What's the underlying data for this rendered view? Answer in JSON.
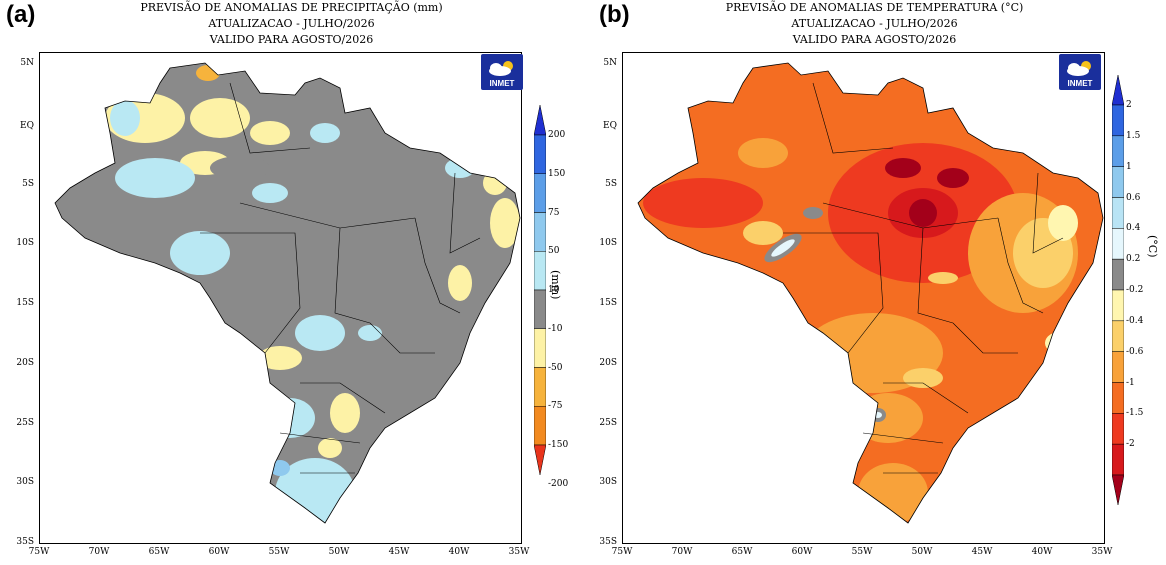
{
  "panel_a": {
    "label": "(a)",
    "title_lines": [
      "PREVISÃO DE ANOMALIAS DE PRECIPITAÇÃO (mm)",
      "ATUALIZACAO - JULHO/2026",
      "VALIDO PARA AGOSTO/2026"
    ],
    "colorbar_unit": "(mm)",
    "colorbar_labels": [
      "200",
      "150",
      "75",
      "50",
      "10",
      "-10",
      "-50",
      "-75",
      "-150",
      "-200"
    ],
    "colors": [
      "#e8341c",
      "#f28a1f",
      "#f6b33c",
      "#fdf2a6",
      "#8a8a8a",
      "#b9e8f3",
      "#8fc9ee",
      "#5c9ee8",
      "#2f66e0",
      "#1f2fd0"
    ]
  },
  "panel_b": {
    "label": "(b)",
    "title_lines": [
      "PREVISÃO DE ANOMALIAS DE TEMPERATURA (°C)",
      "ATUALIZACAO - JULHO/2026",
      "VALIDO PARA AGOSTO/2026"
    ],
    "colorbar_unit": "(°C)",
    "colorbar_labels": [
      "2",
      "1.5",
      "1",
      "0.6",
      "0.4",
      "0.2",
      "-0.2",
      "-0.4",
      "-0.6",
      "-1",
      "-1.5",
      "-2"
    ],
    "colors": [
      "#a3001a",
      "#d7191c",
      "#ee3a20",
      "#f46d22",
      "#f8a23a",
      "#fbd06a",
      "#fff6b0",
      "#8a8a8a",
      "#e6f7fd",
      "#b9e4f5",
      "#8fc9ee",
      "#5c9ee8",
      "#2f66e0",
      "#1f2fd0"
    ]
  },
  "logo_text": "INMET",
  "lat_labels": [
    "5N",
    "EQ",
    "5S",
    "10S",
    "15S",
    "20S",
    "25S",
    "30S",
    "35S"
  ],
  "lon_labels": [
    "75W",
    "70W",
    "65W",
    "60W",
    "55W",
    "50W",
    "45W",
    "40W",
    "35W"
  ]
}
